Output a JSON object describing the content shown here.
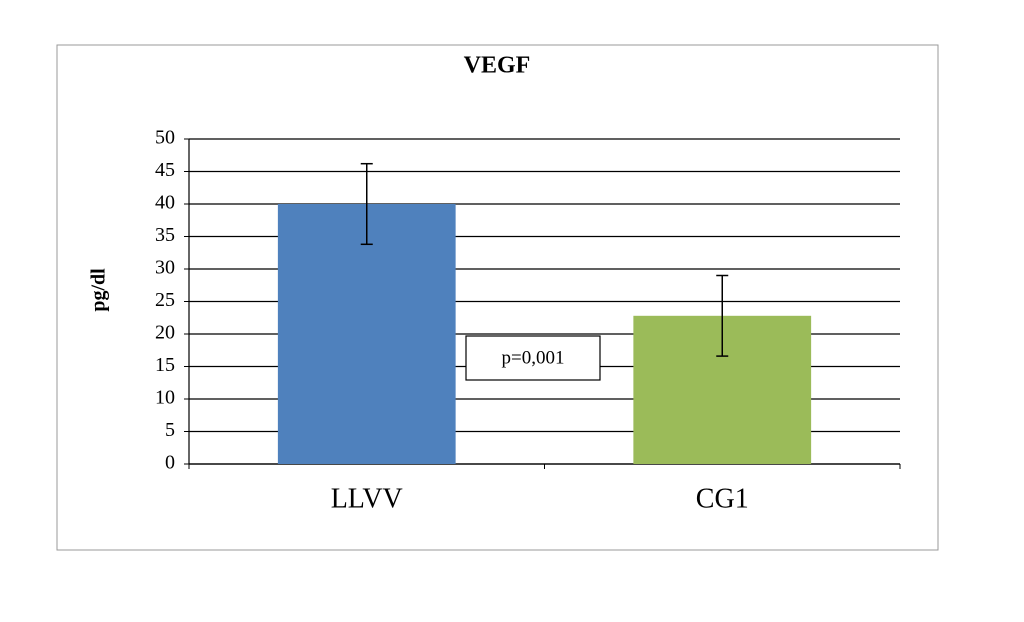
{
  "chart_data": {
    "type": "bar",
    "title": "VEGF",
    "y_label": "pg/dl",
    "categories": [
      "LLVV",
      "CG1"
    ],
    "values": [
      40,
      22.8
    ],
    "errors": [
      6.2,
      6.2
    ],
    "colors": [
      "#4f81bd",
      "#9bbb59"
    ],
    "ylim": [
      0,
      50
    ],
    "yticks": [
      0,
      5,
      10,
      15,
      20,
      25,
      30,
      35,
      40,
      45,
      50
    ],
    "grid": true,
    "annotation": "p=0,001"
  }
}
